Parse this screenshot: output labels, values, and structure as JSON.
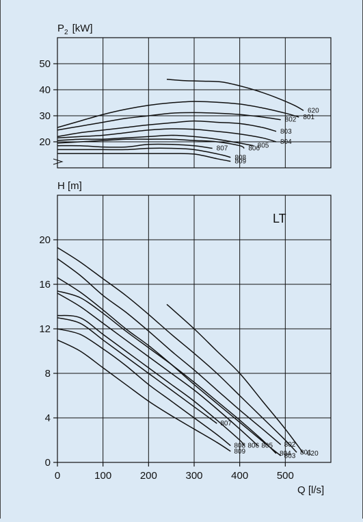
{
  "chart_data": [
    {
      "type": "line",
      "title": "",
      "ylabel_main": "P",
      "ylabel_sub": "2",
      "ylabel_unit": "[kW]",
      "xlabel": "",
      "xlim": [
        0,
        600
      ],
      "ylim": [
        10,
        60
      ],
      "x_gridlines": [
        0,
        100,
        200,
        300,
        400,
        500,
        600
      ],
      "y_gridlines": [
        20,
        30,
        40,
        50,
        60
      ],
      "y_ticks": [
        20,
        30,
        40,
        50
      ],
      "grid": true,
      "series": [
        {
          "name": "620",
          "x": [
            240,
            280,
            320,
            360,
            400,
            440,
            480,
            520,
            540
          ],
          "y": [
            44,
            43.5,
            43.3,
            43,
            41.5,
            39.5,
            37,
            34,
            32
          ]
        },
        {
          "name": "801",
          "x": [
            0,
            50,
            100,
            150,
            200,
            250,
            300,
            350,
            400,
            450,
            500,
            530
          ],
          "y": [
            25.5,
            28,
            30.5,
            32.5,
            34,
            35,
            35.5,
            35.2,
            34.5,
            33,
            31,
            29.5
          ]
        },
        {
          "name": "802",
          "x": [
            0,
            50,
            100,
            150,
            200,
            250,
            300,
            350,
            400,
            450,
            490
          ],
          "y": [
            24.5,
            26,
            27.5,
            29,
            30,
            31,
            31.2,
            31,
            30.5,
            29.5,
            28.5
          ]
        },
        {
          "name": "803",
          "x": [
            0,
            50,
            100,
            150,
            200,
            250,
            300,
            350,
            400,
            450,
            480
          ],
          "y": [
            22,
            23.5,
            24.5,
            25.5,
            26.5,
            27.3,
            28,
            27.5,
            27,
            25.5,
            24
          ]
        },
        {
          "name": "804",
          "x": [
            0,
            50,
            100,
            150,
            200,
            250,
            300,
            350,
            400,
            450,
            480
          ],
          "y": [
            21.5,
            22,
            22.5,
            23.5,
            24.5,
            25,
            24.8,
            24,
            23,
            21.5,
            20
          ]
        },
        {
          "name": "805",
          "x": [
            0,
            50,
            100,
            150,
            200,
            250,
            300,
            350,
            400,
            430
          ],
          "y": [
            20.5,
            21,
            21,
            21.5,
            22,
            22.5,
            22,
            21,
            19.5,
            18.5
          ]
        },
        {
          "name": "806",
          "x": [
            0,
            50,
            100,
            150,
            200,
            250,
            300,
            350,
            400,
            410
          ],
          "y": [
            19.5,
            20,
            20.5,
            21,
            21,
            21,
            20.5,
            20,
            18.5,
            17.5
          ]
        },
        {
          "name": "807",
          "x": [
            0,
            50,
            100,
            150,
            200,
            250,
            300,
            340
          ],
          "y": [
            18.5,
            18.5,
            18,
            18,
            19,
            19,
            18.5,
            17.5
          ]
        },
        {
          "name": "808",
          "x": [
            0,
            50,
            100,
            150,
            200,
            250,
            300,
            360,
            380
          ],
          "y": [
            17,
            17,
            17,
            17,
            17.5,
            17.5,
            17,
            15,
            14
          ]
        },
        {
          "name": "809",
          "x": [
            0,
            50,
            100,
            150,
            200,
            250,
            300,
            350,
            380
          ],
          "y": [
            15.5,
            15.5,
            15.5,
            15.5,
            15.5,
            15.5,
            15.3,
            13.5,
            12.5
          ]
        }
      ]
    },
    {
      "type": "line",
      "title": "",
      "ylabel": "H [m]",
      "xlabel": "Q [l/s]",
      "annotation": "LT",
      "xlim": [
        0,
        600
      ],
      "ylim": [
        0,
        24
      ],
      "x_ticks": [
        0,
        100,
        200,
        300,
        400,
        500
      ],
      "x_gridlines": [
        0,
        100,
        200,
        300,
        400,
        500,
        600
      ],
      "y_ticks": [
        0,
        4,
        8,
        12,
        16,
        20
      ],
      "y_gridlines": [
        4,
        8,
        12,
        16,
        20,
        24
      ],
      "grid": true,
      "series": [
        {
          "name": "620",
          "x": [
            240,
            300,
            350,
            400,
            450,
            500,
            540
          ],
          "y": [
            14.2,
            12,
            10,
            8,
            5.5,
            3,
            0.8
          ]
        },
        {
          "name": "801",
          "x": [
            0,
            50,
            100,
            150,
            200,
            250,
            300,
            350,
            400,
            450,
            500,
            525
          ],
          "y": [
            19.3,
            18,
            16.5,
            15,
            13.3,
            11.5,
            9.8,
            8,
            6,
            4,
            2,
            0.9
          ]
        },
        {
          "name": "802",
          "x": [
            0,
            50,
            100,
            150,
            200,
            250,
            300,
            350,
            400,
            450,
            490
          ],
          "y": [
            18.3,
            16.8,
            15,
            13.5,
            11.8,
            10,
            8.3,
            6.5,
            4.7,
            3,
            1.6
          ]
        },
        {
          "name": "803",
          "x": [
            0,
            50,
            100,
            150,
            200,
            250,
            300,
            350,
            400,
            450,
            490
          ],
          "y": [
            16.6,
            15.3,
            13.7,
            12,
            10.5,
            8.8,
            7,
            5.3,
            3.6,
            1.9,
            0.6
          ]
        },
        {
          "name": "804",
          "x": [
            0,
            50,
            100,
            150,
            200,
            250,
            300,
            350,
            400,
            450,
            480
          ],
          "y": [
            15.4,
            14.8,
            13.4,
            11.8,
            10.3,
            8.8,
            7.2,
            5.5,
            3.8,
            2,
            0.8
          ]
        },
        {
          "name": "805",
          "x": [
            0,
            50,
            100,
            150,
            200,
            250,
            300,
            350,
            400,
            440
          ],
          "y": [
            15.2,
            14,
            12.5,
            11,
            9.5,
            8,
            6.5,
            4.8,
            3,
            1.5
          ]
        },
        {
          "name": "806",
          "x": [
            0,
            50,
            100,
            150,
            200,
            250,
            300,
            350,
            400,
            410
          ],
          "y": [
            13.2,
            13,
            11.5,
            10,
            8.5,
            7,
            5.5,
            3.8,
            2,
            1.5
          ]
        },
        {
          "name": "807",
          "x": [
            0,
            50,
            100,
            150,
            200,
            250,
            300,
            350
          ],
          "y": [
            13,
            12.5,
            11,
            9.5,
            8,
            6.5,
            5,
            3.5
          ]
        },
        {
          "name": "808",
          "x": [
            0,
            50,
            100,
            150,
            200,
            250,
            300,
            350,
            380
          ],
          "y": [
            12,
            11.5,
            10.2,
            8.7,
            7,
            5.5,
            4,
            2.5,
            1.5
          ]
        },
        {
          "name": "809",
          "x": [
            0,
            50,
            100,
            150,
            200,
            250,
            300,
            350,
            380
          ],
          "y": [
            11,
            10,
            8.5,
            7,
            5.5,
            4.2,
            3,
            1.8,
            1
          ]
        }
      ]
    }
  ]
}
